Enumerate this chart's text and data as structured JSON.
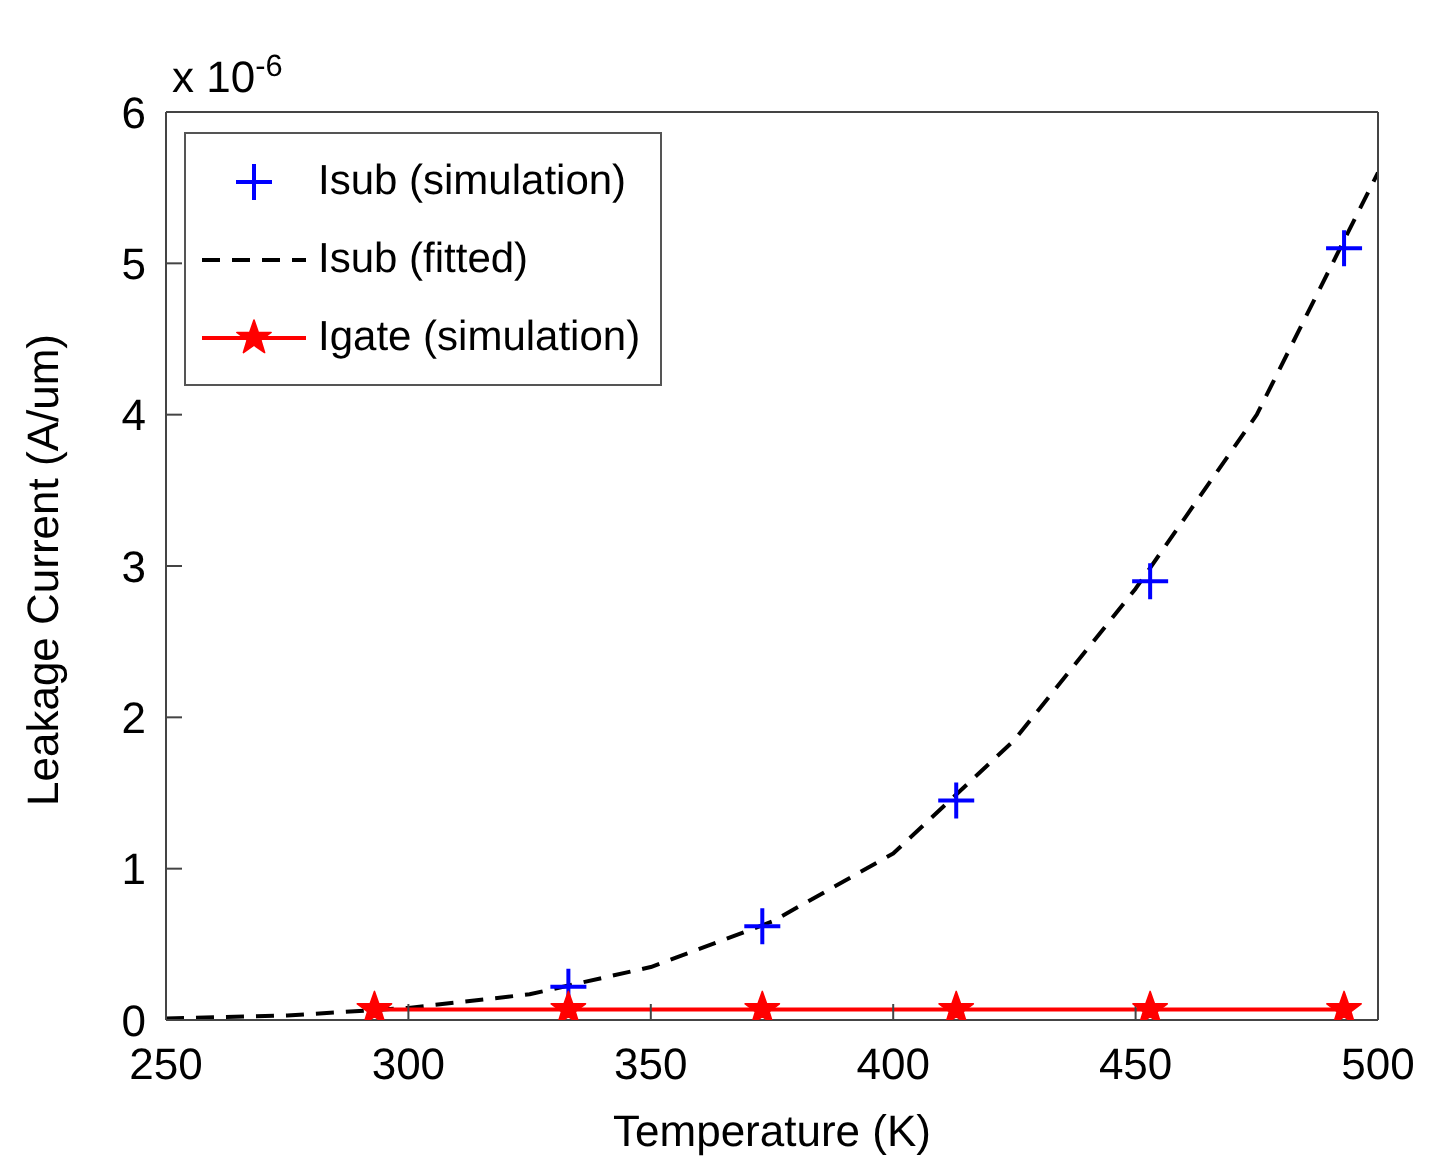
{
  "chart_data": {
    "type": "line",
    "xlabel": "Temperature (K)",
    "ylabel": "Leakage Current (A/um)",
    "annotations": [
      "x 10$^{-6}$"
    ],
    "xlim": [
      250,
      500
    ],
    "xticks": [
      250,
      300,
      350,
      400,
      450,
      500
    ],
    "ylim": [
      0,
      6
    ],
    "yticks": [
      0,
      1,
      2,
      3,
      4,
      5,
      6
    ],
    "legend": "top left",
    "series": [
      {
        "name": "Isub (simulation)",
        "type": "scatter",
        "color": "#0000ff",
        "marker": "cross",
        "x": [
          333,
          373,
          413,
          453,
          493
        ],
        "values": [
          0.22,
          0.62,
          1.45,
          2.9,
          5.1
        ]
      },
      {
        "name": "Isub (fitted)",
        "type": "line",
        "color": "#000000",
        "marker": "none",
        "line_style": "dashed",
        "x": [
          250,
          275,
          300,
          325,
          350,
          375,
          400,
          425,
          450,
          475,
          500
        ],
        "values": [
          0.01,
          0.03,
          0.08,
          0.17,
          0.35,
          0.65,
          1.1,
          1.85,
          2.85,
          4.0,
          5.6
        ]
      },
      {
        "name": "Igate (simulation)",
        "type": "line",
        "color": "#ff0000",
        "marker": "star",
        "line_style": "solid",
        "x": [
          293,
          333,
          373,
          413,
          453,
          493
        ],
        "values": [
          0.07,
          0.07,
          0.07,
          0.07,
          0.07,
          0.07
        ]
      }
    ]
  }
}
